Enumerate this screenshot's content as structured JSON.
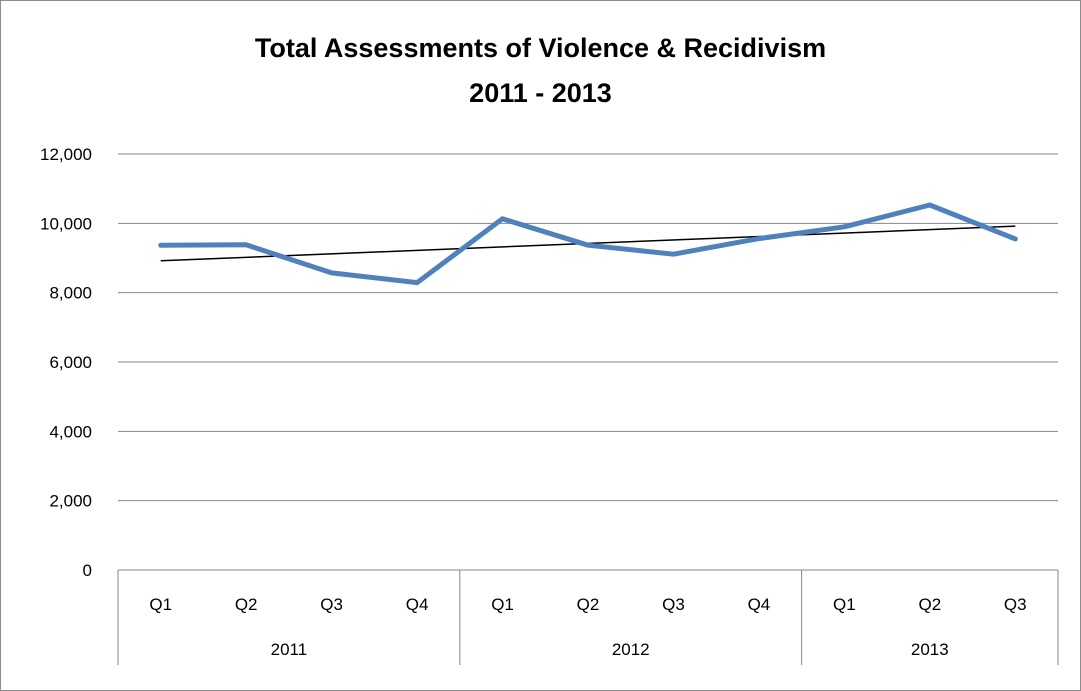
{
  "chart_data": {
    "type": "line",
    "title": "Total Assessments of Violence & Recidivism",
    "subtitle": "2011 - 2013",
    "categories": [
      "Q1",
      "Q2",
      "Q3",
      "Q4",
      "Q1",
      "Q2",
      "Q3",
      "Q4",
      "Q1",
      "Q2",
      "Q3"
    ],
    "groups": [
      {
        "label": "2011",
        "count": 4
      },
      {
        "label": "2012",
        "count": 4
      },
      {
        "label": "2013",
        "count": 3
      }
    ],
    "series": [
      {
        "values": [
          9370,
          9380,
          8570,
          8290,
          10130,
          9370,
          9110,
          9560,
          9900,
          10530,
          9550
        ]
      }
    ],
    "trendline": {
      "start": 8920,
      "end": 9920
    },
    "ylim": [
      0,
      12000
    ],
    "yticks": [
      "0",
      "2,000",
      "4,000",
      "6,000",
      "8,000",
      "10,000",
      "12,000"
    ],
    "grid": true,
    "legend": "none",
    "colors": {
      "series": "#4f81bd",
      "trendline": "#000000",
      "grid": "#868686"
    }
  }
}
